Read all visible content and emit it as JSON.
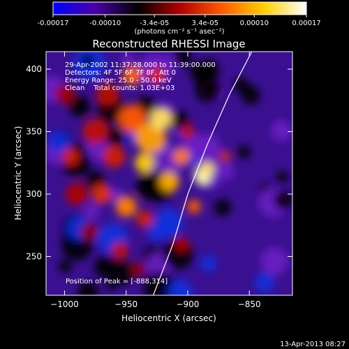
{
  "chart_data": [
    {
      "type": "colorbar",
      "tick_labels": [
        "-0.00017",
        "-0.00010",
        "-3.4e-05",
        "3.4e-05",
        "0.00010",
        "0.00017"
      ],
      "tick_values": [
        -0.00017,
        -0.0001,
        -3.4e-05,
        3.4e-05,
        0.0001,
        0.00017
      ],
      "range": [
        -0.00017,
        0.00017
      ],
      "unit_label": "(photons cm⁻² s⁻¹ asec⁻²)",
      "colors": [
        "#0000ff",
        "#4b00a8",
        "#000000",
        "#b00000",
        "#ff5a00",
        "#ffd000",
        "#ffffff"
      ]
    },
    {
      "type": "heatmap",
      "title": "Reconstructed RHESSI Image",
      "xlabel": "Heliocentric X (arcsec)",
      "ylabel": "Heliocentric Y (arcsec)",
      "xlim": [
        -1015,
        -815
      ],
      "ylim": [
        219,
        414
      ],
      "x_ticks": [
        -1000,
        -950,
        -900,
        -850
      ],
      "y_ticks": [
        250,
        300,
        350,
        400
      ],
      "annotations": [
        "29-Apr-2002 11:37:28.000 to 11:39:00.000",
        "Detectors: 4F 5F 6F 7F 8F, Att 0",
        "Energy Range: 25.0 - 50.0 keV",
        "Clean    Total counts: 1.03E+03"
      ],
      "peak_label": "Position of Peak = [-888,314]",
      "peak": [
        -888,
        314
      ],
      "limb_curve": [
        [
          -928,
          219
        ],
        [
          -912,
          260
        ],
        [
          -900,
          300
        ],
        [
          -884,
          340
        ],
        [
          -866,
          380
        ],
        [
          -848,
          414
        ]
      ]
    }
  ],
  "footer": {
    "timestamp": "13-Apr-2013 08:27"
  }
}
